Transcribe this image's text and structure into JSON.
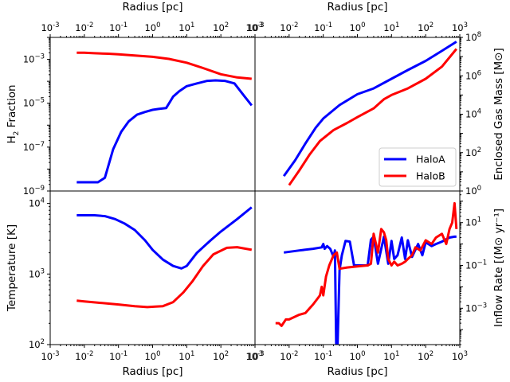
{
  "chart_data": {
    "type": "line",
    "layout": "2x2 shared radius axis",
    "x_axis": {
      "label": "Radius [pc]",
      "scale": "log",
      "xlim": [
        0.001,
        1000
      ],
      "ticks": [
        "10^-3",
        "10^-2",
        "10^-1",
        "10^0",
        "10^1",
        "10^2",
        "10^3"
      ]
    },
    "legend": {
      "panel": "enclosed_mass",
      "placement": "lower-right",
      "entries": [
        "HaloA",
        "HaloB"
      ]
    },
    "colors": {
      "HaloA": "#0000ff",
      "HaloB": "#ff0000"
    },
    "panels": [
      {
        "id": "h2_fraction",
        "position": "top-left",
        "ylabel": "H2 Fraction",
        "yscale": "log",
        "ylim": [
          1e-09,
          0.01
        ],
        "ytick_exponents": [
          -9,
          -7,
          -5,
          -3
        ],
        "series": [
          {
            "name": "HaloA",
            "x": [
              0.006,
              0.015,
              0.025,
              0.04,
              0.07,
              0.12,
              0.2,
              0.35,
              0.6,
              1.0,
              1.5,
              2.5,
              4.0,
              6.0,
              10,
              20,
              40,
              70,
              130,
              250,
              500,
              800
            ],
            "y": [
              2.5e-09,
              2.5e-09,
              2.5e-09,
              4e-09,
              8e-08,
              5e-07,
              1.5e-06,
              3e-06,
              4e-06,
              5e-06,
              5.5e-06,
              6e-06,
              2e-05,
              3.5e-05,
              6e-05,
              8e-05,
              0.000105,
              0.00011,
              0.000105,
              8e-05,
              2e-05,
              8e-06
            ]
          },
          {
            "name": "HaloB",
            "x": [
              0.006,
              0.01,
              0.02,
              0.05,
              0.1,
              0.3,
              1.0,
              3.0,
              10,
              30,
              100,
              300,
              800
            ],
            "y": [
              0.002,
              0.002,
              0.0019,
              0.0018,
              0.0017,
              0.0015,
              0.0013,
              0.00105,
              0.0007,
              0.0004,
              0.00021,
              0.00015,
              0.00013
            ]
          }
        ]
      },
      {
        "id": "enclosed_mass",
        "position": "top-right",
        "ylabel": "Enclosed Gas Mass [M⊙]",
        "yscale": "log",
        "ylim": [
          1,
          100000000.0
        ],
        "ytick_exponents": [
          0,
          2,
          4,
          6,
          8
        ],
        "series": [
          {
            "name": "HaloA",
            "x": [
              0.007,
              0.015,
              0.03,
              0.06,
              0.1,
              0.3,
              1.0,
              3.0,
              10,
              30,
              100,
              300,
              800
            ],
            "y": [
              6,
              40,
              300,
              2000,
              6000,
              30000.0,
              110000.0,
              220000.0,
              700000.0,
              2000000.0,
              6000000.0,
              20000000.0,
              60000000.0
            ]
          },
          {
            "name": "HaloB",
            "x": [
              0.01,
              0.02,
              0.04,
              0.08,
              0.2,
              0.5,
              1.0,
              3.0,
              6.0,
              10,
              30,
              100,
              300,
              800
            ],
            "y": [
              2,
              12,
              80,
              400,
              1500,
              3500,
              7000,
              20000.0,
              60000.0,
              100000.0,
              220000.0,
              700000.0,
              3000000.0,
              25000000.0
            ]
          }
        ]
      },
      {
        "id": "temperature",
        "position": "bottom-left",
        "ylabel": "Temperature [K]",
        "yscale": "log",
        "ylim": [
          100,
          15000
        ],
        "ytick_exponents": [
          2,
          3,
          4
        ],
        "series": [
          {
            "name": "HaloA",
            "x": [
              0.006,
              0.01,
              0.02,
              0.04,
              0.08,
              0.15,
              0.3,
              0.6,
              1.0,
              2.0,
              4.0,
              7.0,
              10,
              20,
              50,
              100,
              300,
              800
            ],
            "y": [
              6800,
              6800,
              6800,
              6600,
              6000,
              5200,
              4200,
              3000,
              2200,
              1600,
              1300,
              1200,
              1300,
              2000,
              3000,
              4000,
              6000,
              8800
            ]
          },
          {
            "name": "HaloB",
            "x": [
              0.006,
              0.01,
              0.03,
              0.1,
              0.3,
              0.7,
              1.2,
              2.0,
              4.0,
              8.0,
              15,
              30,
              60,
              150,
              300,
              800
            ],
            "y": [
              420,
              410,
              390,
              370,
              350,
              340,
              345,
              350,
              400,
              550,
              800,
              1300,
              1900,
              2350,
              2400,
              2200
            ]
          }
        ]
      },
      {
        "id": "inflow_rate",
        "position": "bottom-right",
        "ylabel": "Inflow Rate [(M⊙ yr⁻¹]",
        "yscale": "log",
        "ylim": [
          2e-05,
          300
        ],
        "ytick_exponents": [
          -3,
          -1,
          1
        ],
        "series": [
          {
            "name": "HaloA",
            "x": [
              0.007,
              0.02,
              0.05,
              0.09,
              0.1,
              0.11,
              0.13,
              0.16,
              0.2,
              0.22,
              0.24,
              0.26,
              0.3,
              0.35,
              0.45,
              0.6,
              0.8,
              1.0,
              2.0,
              2.5,
              3.0,
              4.0,
              6.0,
              8.0,
              10,
              12,
              15,
              20,
              25,
              30,
              40,
              60,
              80,
              100,
              150,
              200,
              300,
              500,
              700,
              800
            ],
            "y": [
              0.4,
              0.5,
              0.6,
              0.7,
              1.0,
              0.6,
              0.8,
              0.6,
              0.25,
              0.5,
              1e-05,
              1e-05,
              0.06,
              0.3,
              1.4,
              1.3,
              0.1,
              0.1,
              0.1,
              1.6,
              2.2,
              0.12,
              2.2,
              0.12,
              1.4,
              0.2,
              0.3,
              2.0,
              0.2,
              1.5,
              0.25,
              1.0,
              0.3,
              1.2,
              0.8,
              1.0,
              1.3,
              2.0,
              2.2,
              2.2
            ]
          },
          {
            "name": "HaloB",
            "x": [
              0.004,
              0.005,
              0.006,
              0.008,
              0.01,
              0.02,
              0.03,
              0.05,
              0.07,
              0.08,
              0.09,
              0.1,
              0.12,
              0.15,
              0.2,
              0.25,
              0.3,
              0.5,
              1.0,
              2.0,
              2.5,
              3.0,
              4.0,
              5.0,
              6.0,
              7.0,
              8.0,
              10,
              12,
              15,
              20,
              25,
              30,
              40,
              50,
              70,
              100,
              150,
              200,
              300,
              400,
              500,
              600,
              700,
              800
            ],
            "y": [
              0.0002,
              0.0002,
              0.00015,
              0.0003,
              0.0003,
              0.0005,
              0.0006,
              0.0015,
              0.003,
              0.004,
              0.01,
              0.004,
              0.03,
              0.1,
              0.3,
              0.4,
              0.07,
              0.08,
              0.09,
              0.1,
              0.12,
              3.0,
              0.4,
              5.0,
              3.5,
              1.5,
              0.2,
              0.1,
              0.15,
              0.1,
              0.12,
              0.15,
              0.2,
              0.3,
              0.7,
              0.5,
              1.5,
              1.0,
              2.0,
              3.0,
              1.0,
              5.0,
              10,
              80,
              5.0
            ]
          }
        ]
      }
    ]
  }
}
